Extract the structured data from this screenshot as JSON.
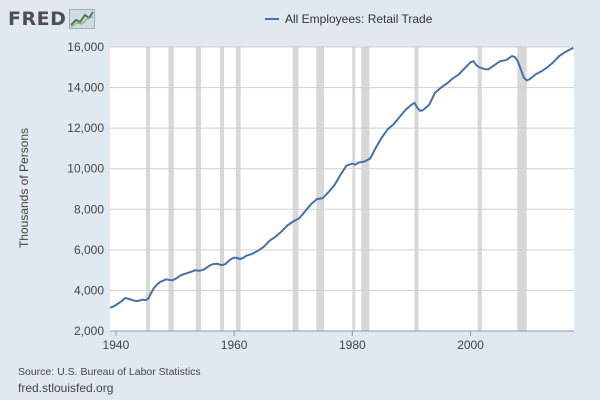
{
  "brand": {
    "logo_text": "FRED",
    "logo_icon": "chart-icon"
  },
  "footer": {
    "source": "Source: U.S. Bureau of Labor Statistics",
    "site": "fred.stlouisfed.org"
  },
  "colors": {
    "background": "#e1e9f0",
    "plot_background": "#ffffff",
    "series": "#4572a7",
    "recession": "#d8d8d8",
    "grid": "#d0d0d0"
  },
  "chart_data": {
    "type": "line",
    "title": "",
    "xlabel": "",
    "ylabel": "Thousands of Persons",
    "xlim": [
      1939,
      2017.5
    ],
    "ylim": [
      2000,
      16000
    ],
    "x_ticks": [
      1940,
      1960,
      1980,
      2000
    ],
    "x_tick_labels": [
      "1940",
      "1960",
      "1980",
      "2000"
    ],
    "y_ticks": [
      2000,
      4000,
      6000,
      8000,
      10000,
      12000,
      14000,
      16000
    ],
    "y_tick_labels": [
      "2,000",
      "4,000",
      "6,000",
      "8,000",
      "10,000",
      "12,000",
      "14,000",
      "16,000"
    ],
    "grid": true,
    "legend_position": "top-center",
    "recessions": [
      [
        1945.1,
        1945.8
      ],
      [
        1948.9,
        1949.8
      ],
      [
        1953.5,
        1954.4
      ],
      [
        1957.6,
        1958.3
      ],
      [
        1960.3,
        1961.1
      ],
      [
        1969.9,
        1970.9
      ],
      [
        1973.9,
        1975.2
      ],
      [
        1980.0,
        1980.5
      ],
      [
        1981.5,
        1982.9
      ],
      [
        1990.5,
        1991.2
      ],
      [
        2001.2,
        2001.9
      ],
      [
        2007.9,
        2009.5
      ]
    ],
    "series": [
      {
        "name": "All Employees: Retail Trade",
        "x": [
          1939.0,
          1939.5,
          1940.0,
          1940.5,
          1941.0,
          1941.5,
          1942.0,
          1942.5,
          1943.0,
          1943.5,
          1944.0,
          1944.5,
          1945.0,
          1945.5,
          1946.0,
          1946.5,
          1947.0,
          1947.5,
          1948.0,
          1948.5,
          1949.0,
          1949.5,
          1950.0,
          1950.5,
          1951.0,
          1952.0,
          1953.0,
          1953.5,
          1954.0,
          1954.5,
          1955.0,
          1955.5,
          1956.0,
          1956.5,
          1957.0,
          1957.5,
          1958.0,
          1958.5,
          1959.0,
          1959.5,
          1960.0,
          1960.5,
          1961.0,
          1961.5,
          1962.0,
          1963.0,
          1964.0,
          1965.0,
          1966.0,
          1967.0,
          1968.0,
          1969.0,
          1970.0,
          1971.0,
          1972.0,
          1973.0,
          1974.0,
          1975.0,
          1976.0,
          1977.0,
          1978.0,
          1979.0,
          1980.0,
          1980.5,
          1981.0,
          1982.0,
          1983.0,
          1984.0,
          1985.0,
          1986.0,
          1987.0,
          1988.0,
          1989.0,
          1990.0,
          1990.5,
          1991.0,
          1991.5,
          1992.0,
          1993.0,
          1994.0,
          1995.0,
          1996.0,
          1997.0,
          1998.0,
          1999.0,
          2000.0,
          2000.5,
          2001.0,
          2001.5,
          2002.0,
          2002.5,
          2003.0,
          2004.0,
          2005.0,
          2006.0,
          2007.0,
          2007.5,
          2008.0,
          2008.5,
          2009.0,
          2009.5,
          2010.0,
          2011.0,
          2012.0,
          2013.0,
          2014.0,
          2015.0,
          2016.0,
          2017.0,
          2017.4
        ],
        "values": [
          3150,
          3200,
          3280,
          3380,
          3480,
          3620,
          3600,
          3550,
          3500,
          3480,
          3500,
          3550,
          3520,
          3600,
          3900,
          4150,
          4300,
          4420,
          4480,
          4550,
          4520,
          4500,
          4560,
          4650,
          4750,
          4850,
          4950,
          5000,
          4970,
          4990,
          5050,
          5150,
          5250,
          5300,
          5320,
          5280,
          5250,
          5300,
          5430,
          5550,
          5620,
          5600,
          5550,
          5600,
          5700,
          5800,
          5950,
          6150,
          6450,
          6650,
          6900,
          7200,
          7400,
          7550,
          7900,
          8250,
          8500,
          8550,
          8850,
          9200,
          9700,
          10150,
          10250,
          10200,
          10300,
          10350,
          10500,
          11050,
          11550,
          11950,
          12200,
          12550,
          12900,
          13150,
          13250,
          13000,
          12850,
          12900,
          13150,
          13750,
          14000,
          14200,
          14450,
          14650,
          14950,
          15250,
          15300,
          15100,
          15000,
          14950,
          14900,
          14900,
          15100,
          15300,
          15350,
          15550,
          15500,
          15300,
          14900,
          14500,
          14350,
          14420,
          14650,
          14800,
          15000,
          15250,
          15550,
          15750,
          15900,
          15950
        ]
      }
    ]
  }
}
